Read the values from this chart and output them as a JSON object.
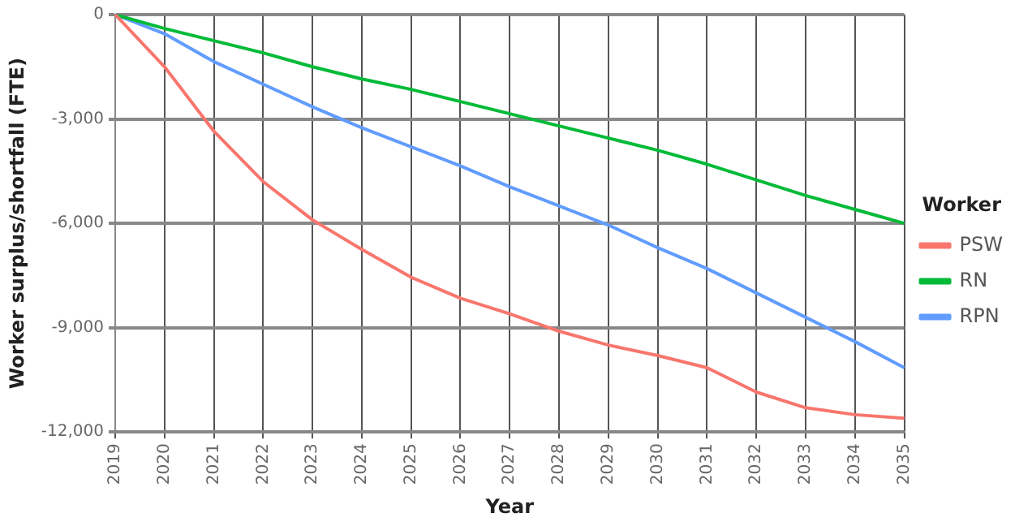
{
  "chart_data": {
    "type": "line",
    "xlabel": "Year",
    "ylabel": "Worker surplus/shortfall (FTE)",
    "legend_title": "Worker",
    "categories": [
      "2019",
      "2020",
      "2021",
      "2022",
      "2023",
      "2024",
      "2025",
      "2026",
      "2027",
      "2028",
      "2029",
      "2030",
      "2031",
      "2032",
      "2033",
      "2034",
      "2035"
    ],
    "series": [
      {
        "name": "PSW",
        "color": "#f8766d",
        "values": [
          0,
          -1500,
          -3350,
          -4800,
          -5900,
          -6750,
          -7550,
          -8150,
          -8600,
          -9100,
          -9500,
          -9800,
          -10150,
          -10850,
          -11300,
          -11500,
          -11600
        ]
      },
      {
        "name": "RN",
        "color": "#00ba38",
        "values": [
          0,
          -400,
          -750,
          -1100,
          -1500,
          -1850,
          -2150,
          -2500,
          -2850,
          -3200,
          -3550,
          -3900,
          -4300,
          -4750,
          -5200,
          -5600,
          -6000
        ]
      },
      {
        "name": "RPN",
        "color": "#619cff",
        "values": [
          0,
          -550,
          -1350,
          -2000,
          -2650,
          -3250,
          -3800,
          -4350,
          -4950,
          -5500,
          -6050,
          -6700,
          -7300,
          -8000,
          -8700,
          -9400,
          -10150
        ]
      }
    ],
    "ylim": [
      -12000,
      0
    ],
    "yticks": [
      {
        "value": -12000,
        "label": "-12,000"
      },
      {
        "value": -9000,
        "label": "-9,000"
      },
      {
        "value": -6000,
        "label": "-6,000"
      },
      {
        "value": -3000,
        "label": "-3,000"
      },
      0
    ],
    "grid": true,
    "legend": "right",
    "marker": "none",
    "line_style": "solid"
  }
}
